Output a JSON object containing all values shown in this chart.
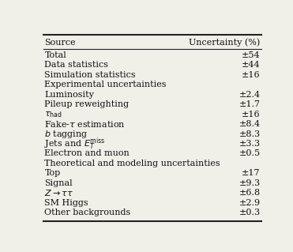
{
  "header": [
    "Source",
    "Uncertainty (%)"
  ],
  "rows": [
    [
      "Total",
      "±54"
    ],
    [
      "Data statistics",
      "±44"
    ],
    [
      "Simulation statistics",
      "±16"
    ],
    [
      "Experimental uncertainties",
      ""
    ],
    [
      "Luminosity",
      "±2.4"
    ],
    [
      "Pileup reweighting",
      "±1.7"
    ],
    [
      "tau_had",
      "±16"
    ],
    [
      "fake_tau",
      "±8.4"
    ],
    [
      "b_tagging",
      "±8.3"
    ],
    [
      "jets_etmiss",
      "±3.3"
    ],
    [
      "Electron and muon",
      "±0.5"
    ],
    [
      "Theoretical and modeling uncertainties",
      ""
    ],
    [
      "Top",
      "±17"
    ],
    [
      "Signal",
      "±9.3"
    ],
    [
      "z_tautau",
      "±6.8"
    ],
    [
      "SM Higgs",
      "±2.9"
    ],
    [
      "Other backgrounds",
      "±0.3"
    ]
  ],
  "section_headers": [
    3,
    11
  ],
  "bg_color": "#f0efe8",
  "text_color": "#111111",
  "line_color": "#222222",
  "fontsize": 8.0,
  "header_fontsize": 8.0
}
